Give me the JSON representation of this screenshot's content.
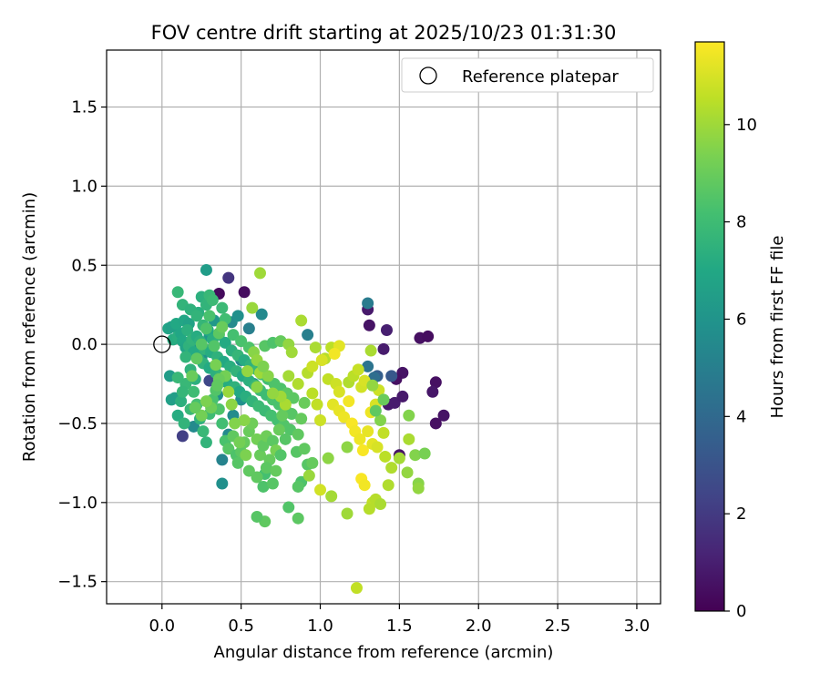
{
  "chart_data": {
    "type": "scatter",
    "title": "FOV centre drift starting at 2025/10/23 01:31:30",
    "xlabel": "Angular distance from reference (arcmin)",
    "ylabel": "Rotation from reference (arcmin)",
    "xlim": [
      -0.35,
      3.15
    ],
    "ylim": [
      -1.64,
      1.86
    ],
    "xticks": [
      0.0,
      0.5,
      1.0,
      1.5,
      2.0,
      2.5,
      3.0
    ],
    "yticks": [
      -1.5,
      -1.0,
      -0.5,
      0.0,
      0.5,
      1.0,
      1.5
    ],
    "xtick_labels": [
      "0.0",
      "0.5",
      "1.0",
      "1.5",
      "2.0",
      "2.5",
      "3.0"
    ],
    "ytick_labels": [
      "−1.5",
      "−1.0",
      "−0.5",
      "0.0",
      "0.5",
      "1.0",
      "1.5"
    ],
    "grid": true,
    "legend": {
      "position": "top-right",
      "label": "Reference platepar"
    },
    "reference_point": {
      "x": 0.0,
      "y": 0.0
    },
    "colorbar": {
      "label": "Hours from first FF file",
      "colormap": "viridis",
      "range": [
        0,
        11.7
      ],
      "ticks": [
        0,
        2,
        4,
        6,
        8,
        10
      ],
      "tick_labels": [
        "0",
        "2",
        "4",
        "6",
        "8",
        "10"
      ]
    },
    "points": [
      [
        0.36,
        0.32,
        0.3
      ],
      [
        0.52,
        0.33,
        0.4
      ],
      [
        1.3,
        0.22,
        0.8
      ],
      [
        1.31,
        0.12,
        0.6
      ],
      [
        1.63,
        0.04,
        0.5
      ],
      [
        1.68,
        0.05,
        0.4
      ],
      [
        1.52,
        -0.18,
        0.6
      ],
      [
        1.48,
        -0.22,
        0.5
      ],
      [
        1.73,
        -0.24,
        0.5
      ],
      [
        1.71,
        -0.3,
        0.7
      ],
      [
        1.78,
        -0.45,
        0.6
      ],
      [
        1.73,
        -0.5,
        0.5
      ],
      [
        1.5,
        -0.7,
        0.6
      ],
      [
        1.43,
        -0.38,
        0.8
      ],
      [
        1.47,
        -0.37,
        0.9
      ],
      [
        1.52,
        -0.33,
        0.8
      ],
      [
        1.4,
        -0.03,
        0.9
      ],
      [
        1.42,
        0.09,
        1.0
      ],
      [
        0.42,
        0.42,
        1.8
      ],
      [
        0.13,
        -0.58,
        2.2
      ],
      [
        0.3,
        -0.23,
        2.5
      ],
      [
        1.36,
        -0.2,
        3.5
      ],
      [
        1.45,
        -0.2,
        3.2
      ],
      [
        1.3,
        0.26,
        4.8
      ],
      [
        1.3,
        -0.14,
        4.5
      ],
      [
        1.34,
        -0.21,
        4.2
      ],
      [
        0.92,
        0.06,
        5.0
      ],
      [
        0.55,
        0.1,
        5.0
      ],
      [
        0.63,
        0.19,
        5.5
      ],
      [
        0.5,
        -0.1,
        5.5
      ],
      [
        0.44,
        0.14,
        5.5
      ],
      [
        0.48,
        0.18,
        5.8
      ],
      [
        0.38,
        -0.73,
        5.2
      ],
      [
        0.38,
        -0.88,
        5.8
      ],
      [
        0.42,
        -0.57,
        5.5
      ],
      [
        0.2,
        -0.52,
        5.5
      ],
      [
        0.45,
        -0.45,
        5.6
      ],
      [
        0.5,
        -0.35,
        5.8
      ],
      [
        0.58,
        -0.25,
        5.6
      ],
      [
        0.35,
        -0.32,
        5.7
      ],
      [
        0.25,
        -0.08,
        5.9
      ],
      [
        0.18,
        -0.02,
        6.0
      ],
      [
        0.3,
        0.05,
        6.1
      ],
      [
        0.33,
        0.15,
        6.2
      ],
      [
        0.28,
        0.47,
        6.4
      ],
      [
        0.05,
        -0.2,
        6.4
      ],
      [
        0.06,
        -0.35,
        6.6
      ],
      [
        0.08,
        -0.34,
        6.5
      ],
      [
        0.04,
        0.1,
        6.8
      ],
      [
        0.06,
        0.11,
        6.6
      ],
      [
        0.09,
        0.13,
        7.0
      ],
      [
        0.14,
        0.15,
        6.9
      ],
      [
        0.17,
        0.13,
        6.7
      ],
      [
        0.07,
        0.03,
        7.2
      ],
      [
        0.1,
        0.05,
        7.3
      ],
      [
        0.12,
        0.07,
        6.9
      ],
      [
        0.13,
        0.02,
        7.0
      ],
      [
        0.15,
        -0.02,
        6.8
      ],
      [
        0.16,
        0.09,
        7.4
      ],
      [
        0.17,
        -0.01,
        7.5
      ],
      [
        0.19,
        0.03,
        7.6
      ],
      [
        0.2,
        -0.05,
        7.1
      ],
      [
        0.22,
        0.05,
        7.2
      ],
      [
        0.23,
        -0.09,
        7.3
      ],
      [
        0.24,
        0.02,
        7.4
      ],
      [
        0.26,
        -0.12,
        7.5
      ],
      [
        0.27,
        -0.03,
        7.6
      ],
      [
        0.29,
        0.09,
        7.0
      ],
      [
        0.3,
        -0.15,
        7.1
      ],
      [
        0.31,
        -0.05,
        7.2
      ],
      [
        0.32,
        0.03,
        7.3
      ],
      [
        0.34,
        -0.18,
        7.4
      ],
      [
        0.35,
        -0.08,
        7.5
      ],
      [
        0.36,
        0.06,
        7.6
      ],
      [
        0.37,
        -0.2,
        7.7
      ],
      [
        0.39,
        -0.11,
        7.0
      ],
      [
        0.4,
        0.01,
        7.1
      ],
      [
        0.41,
        -0.24,
        7.2
      ],
      [
        0.43,
        -0.14,
        7.3
      ],
      [
        0.44,
        -0.04,
        7.4
      ],
      [
        0.46,
        -0.27,
        7.5
      ],
      [
        0.47,
        -0.17,
        7.6
      ],
      [
        0.48,
        -0.07,
        7.7
      ],
      [
        0.49,
        -0.3,
        7.0
      ],
      [
        0.51,
        -0.2,
        7.1
      ],
      [
        0.52,
        -0.1,
        7.2
      ],
      [
        0.53,
        -0.33,
        7.3
      ],
      [
        0.55,
        -0.23,
        7.4
      ],
      [
        0.56,
        -0.13,
        7.5
      ],
      [
        0.57,
        -0.36,
        7.6
      ],
      [
        0.59,
        -0.26,
        7.7
      ],
      [
        0.6,
        -0.16,
        7.8
      ],
      [
        0.61,
        -0.39,
        7.9
      ],
      [
        0.62,
        -0.29,
        8.0
      ],
      [
        0.63,
        -0.19,
        8.1
      ],
      [
        0.65,
        -0.42,
        7.9
      ],
      [
        0.66,
        -0.32,
        8.0
      ],
      [
        0.67,
        -0.22,
        8.1
      ],
      [
        0.69,
        -0.45,
        8.2
      ],
      [
        0.7,
        -0.35,
        8.3
      ],
      [
        0.71,
        -0.25,
        8.4
      ],
      [
        0.73,
        -0.48,
        8.2
      ],
      [
        0.74,
        -0.38,
        8.3
      ],
      [
        0.75,
        -0.28,
        8.4
      ],
      [
        0.77,
        -0.51,
        8.5
      ],
      [
        0.78,
        -0.41,
        8.6
      ],
      [
        0.79,
        -0.31,
        8.7
      ],
      [
        0.81,
        -0.54,
        8.5
      ],
      [
        0.82,
        -0.44,
        8.6
      ],
      [
        0.83,
        -0.34,
        8.7
      ],
      [
        0.86,
        -0.57,
        8.8
      ],
      [
        0.88,
        -0.47,
        8.9
      ],
      [
        0.9,
        -0.37,
        9.0
      ],
      [
        0.85,
        -0.68,
        8.6
      ],
      [
        0.9,
        -0.66,
        8.8
      ],
      [
        0.92,
        -0.76,
        8.6
      ],
      [
        0.95,
        -0.75,
        8.9
      ],
      [
        0.88,
        -0.87,
        8.4
      ],
      [
        0.86,
        -0.9,
        8.6
      ],
      [
        0.8,
        -1.03,
        8.5
      ],
      [
        0.86,
        -1.1,
        8.7
      ],
      [
        0.65,
        -1.12,
        8.8
      ],
      [
        0.6,
        -1.09,
        8.6
      ],
      [
        0.65,
        -0.82,
        8.2
      ],
      [
        0.6,
        -0.84,
        8.8
      ],
      [
        0.64,
        -0.9,
        8.4
      ],
      [
        0.7,
        -0.88,
        8.6
      ],
      [
        0.15,
        -0.25,
        7.8
      ],
      [
        0.12,
        -0.36,
        7.4
      ],
      [
        0.1,
        -0.45,
        7.2
      ],
      [
        0.14,
        -0.5,
        7.6
      ],
      [
        0.18,
        -0.41,
        7.8
      ],
      [
        0.2,
        -0.3,
        8.0
      ],
      [
        0.22,
        -0.38,
        8.2
      ],
      [
        0.24,
        -0.47,
        7.5
      ],
      [
        0.26,
        -0.55,
        7.8
      ],
      [
        0.28,
        -0.62,
        7.6
      ],
      [
        0.3,
        -0.44,
        8.0
      ],
      [
        0.32,
        -0.35,
        8.3
      ],
      [
        0.34,
        -0.29,
        8.5
      ],
      [
        0.36,
        -0.41,
        8.4
      ],
      [
        0.38,
        -0.5,
        8.1
      ],
      [
        0.4,
        -0.61,
        8.3
      ],
      [
        0.42,
        -0.66,
        8.6
      ],
      [
        0.45,
        -0.58,
        8.8
      ],
      [
        0.47,
        -0.7,
        8.4
      ],
      [
        0.5,
        -0.68,
        8.7
      ],
      [
        0.52,
        -0.62,
        8.9
      ],
      [
        0.55,
        -0.55,
        9.0
      ],
      [
        0.57,
        -0.5,
        9.1
      ],
      [
        0.6,
        -0.6,
        9.2
      ],
      [
        0.62,
        -0.7,
        9.0
      ],
      [
        0.64,
        -0.64,
        8.8
      ],
      [
        0.66,
        -0.58,
        9.1
      ],
      [
        0.68,
        -0.73,
        8.9
      ],
      [
        0.7,
        -0.61,
        8.7
      ],
      [
        0.72,
        -0.67,
        9.3
      ],
      [
        0.74,
        -0.54,
        9.0
      ],
      [
        0.76,
        -0.45,
        8.9
      ],
      [
        0.78,
        -0.6,
        8.6
      ],
      [
        0.75,
        -0.7,
        8.5
      ],
      [
        0.66,
        -0.78,
        8.7
      ],
      [
        0.72,
        -0.8,
        8.9
      ],
      [
        0.55,
        -0.8,
        8.8
      ],
      [
        0.48,
        -0.75,
        8.6
      ],
      [
        0.1,
        -0.21,
        7.8
      ],
      [
        0.13,
        -0.3,
        7.7
      ],
      [
        0.15,
        -0.08,
        7.6
      ],
      [
        0.18,
        -0.16,
        7.5
      ],
      [
        0.21,
        -0.22,
        7.4
      ],
      [
        0.23,
        0.2,
        7.3
      ],
      [
        0.25,
        0.3,
        7.4
      ],
      [
        0.28,
        0.25,
        7.6
      ],
      [
        0.3,
        0.31,
        7.8
      ],
      [
        0.32,
        0.28,
        7.9
      ],
      [
        0.1,
        0.33,
        7.8
      ],
      [
        0.13,
        0.25,
        7.6
      ],
      [
        0.18,
        0.22,
        7.5
      ],
      [
        0.22,
        0.18,
        7.6
      ],
      [
        0.26,
        0.12,
        7.7
      ],
      [
        0.38,
        0.23,
        7.9
      ],
      [
        0.4,
        0.16,
        8.1
      ],
      [
        0.45,
        0.06,
        8.2
      ],
      [
        0.5,
        0.02,
        8.3
      ],
      [
        0.55,
        -0.02,
        8.4
      ],
      [
        0.65,
        -0.01,
        8.6
      ],
      [
        0.7,
        0.01,
        8.4
      ],
      [
        0.75,
        0.02,
        8.9
      ],
      [
        0.8,
        0.0,
        9.8
      ],
      [
        0.82,
        -0.05,
        10.0
      ],
      [
        0.62,
        0.45,
        10.0
      ],
      [
        0.57,
        0.23,
        9.9
      ],
      [
        0.88,
        0.15,
        10.2
      ],
      [
        0.58,
        -0.05,
        9.6
      ],
      [
        0.6,
        -0.1,
        9.8
      ],
      [
        0.62,
        -0.18,
        10.0
      ],
      [
        0.8,
        -0.2,
        10.1
      ],
      [
        0.86,
        -0.25,
        10.3
      ],
      [
        0.92,
        -0.18,
        10.4
      ],
      [
        0.95,
        -0.31,
        10.5
      ],
      [
        0.98,
        -0.38,
        10.6
      ],
      [
        1.0,
        -0.48,
        10.8
      ],
      [
        0.97,
        -0.02,
        10.2
      ],
      [
        1.03,
        -0.09,
        10.4
      ],
      [
        1.07,
        -0.02,
        10.5
      ],
      [
        1.05,
        -0.22,
        10.6
      ],
      [
        1.1,
        -0.25,
        10.8
      ],
      [
        1.12,
        -0.3,
        11.0
      ],
      [
        1.08,
        -0.38,
        11.2
      ],
      [
        1.12,
        -0.42,
        11.3
      ],
      [
        1.15,
        -0.46,
        11.4
      ],
      [
        1.18,
        -0.36,
        11.5
      ],
      [
        1.2,
        -0.5,
        11.6
      ],
      [
        1.22,
        -0.55,
        11.5
      ],
      [
        1.25,
        -0.6,
        11.4
      ],
      [
        1.27,
        -0.67,
        11.6
      ],
      [
        1.26,
        -0.85,
        11.6
      ],
      [
        1.28,
        -0.89,
        11.5
      ],
      [
        1.3,
        -0.55,
        11.3
      ],
      [
        1.32,
        -0.43,
        11.4
      ],
      [
        1.33,
        -0.63,
        11.2
      ],
      [
        1.35,
        -0.38,
        11.0
      ],
      [
        1.37,
        -0.29,
        10.8
      ],
      [
        1.4,
        -0.56,
        10.6
      ],
      [
        1.41,
        -0.71,
        10.5
      ],
      [
        1.45,
        -0.78,
        10.3
      ],
      [
        1.5,
        -0.72,
        10.1
      ],
      [
        1.55,
        -0.81,
        9.8
      ],
      [
        1.6,
        -0.7,
        9.5
      ],
      [
        1.62,
        -0.88,
        9.6
      ],
      [
        1.62,
        -0.91,
        9.8
      ],
      [
        1.66,
        -0.69,
        9.3
      ],
      [
        1.56,
        -0.45,
        9.5
      ],
      [
        1.56,
        -0.6,
        10.2
      ],
      [
        1.36,
        -0.65,
        11.0
      ],
      [
        1.33,
        -1.0,
        10.6
      ],
      [
        1.35,
        -0.98,
        10.4
      ],
      [
        1.38,
        -1.01,
        10.2
      ],
      [
        1.31,
        -1.04,
        10.4
      ],
      [
        1.43,
        -0.89,
        10.3
      ],
      [
        1.17,
        -1.07,
        10.0
      ],
      [
        1.07,
        -0.96,
        10.1
      ],
      [
        1.0,
        -0.92,
        10.9
      ],
      [
        1.23,
        -1.54,
        10.6
      ],
      [
        1.17,
        -0.65,
        9.7
      ],
      [
        1.05,
        -0.72,
        9.7
      ],
      [
        0.93,
        -0.83,
        9.9
      ],
      [
        1.18,
        -0.24,
        10.3
      ],
      [
        1.21,
        -0.2,
        10.5
      ],
      [
        1.24,
        -0.16,
        10.7
      ],
      [
        1.26,
        -0.27,
        10.9
      ],
      [
        1.28,
        -0.23,
        11.0
      ],
      [
        1.32,
        -0.04,
        10.2
      ],
      [
        1.33,
        -0.26,
        9.8
      ],
      [
        1.38,
        -0.48,
        9.5
      ],
      [
        1.4,
        -0.35,
        9.0
      ],
      [
        1.35,
        -0.42,
        8.8
      ],
      [
        1.12,
        -0.01,
        11.2
      ],
      [
        1.09,
        -0.06,
        11.5
      ],
      [
        1.01,
        -0.1,
        11.0
      ],
      [
        0.95,
        -0.14,
        10.8
      ],
      [
        0.78,
        -0.38,
        10.2
      ],
      [
        0.75,
        -0.33,
        10.0
      ],
      [
        0.7,
        -0.31,
        9.8
      ],
      [
        0.67,
        -0.2,
        9.6
      ],
      [
        0.64,
        -0.14,
        9.4
      ],
      [
        0.6,
        -0.27,
        9.6
      ],
      [
        0.54,
        -0.17,
        9.8
      ],
      [
        0.52,
        -0.48,
        9.6
      ],
      [
        0.53,
        -0.7,
        9.4
      ],
      [
        0.49,
        -0.62,
        9.2
      ],
      [
        0.46,
        -0.5,
        9.5
      ],
      [
        0.44,
        -0.38,
        9.7
      ],
      [
        0.42,
        -0.3,
        9.9
      ],
      [
        0.4,
        -0.2,
        9.2
      ],
      [
        0.36,
        -0.22,
        9.0
      ],
      [
        0.34,
        -0.13,
        9.3
      ],
      [
        0.31,
        -0.4,
        9.1
      ],
      [
        0.28,
        -0.36,
        9.4
      ],
      [
        0.25,
        -0.45,
        9.2
      ],
      [
        0.21,
        -0.4,
        8.9
      ],
      [
        0.19,
        -0.2,
        9.0
      ],
      [
        0.22,
        -0.09,
        8.8
      ],
      [
        0.25,
        0.0,
        8.6
      ],
      [
        0.28,
        0.1,
        8.4
      ],
      [
        0.3,
        0.18,
        8.3
      ],
      [
        0.33,
        -0.01,
        8.5
      ],
      [
        0.36,
        0.07,
        8.7
      ],
      [
        0.38,
        0.11,
        9.0
      ],
      [
        0.35,
        -0.26,
        8.8
      ]
    ]
  }
}
